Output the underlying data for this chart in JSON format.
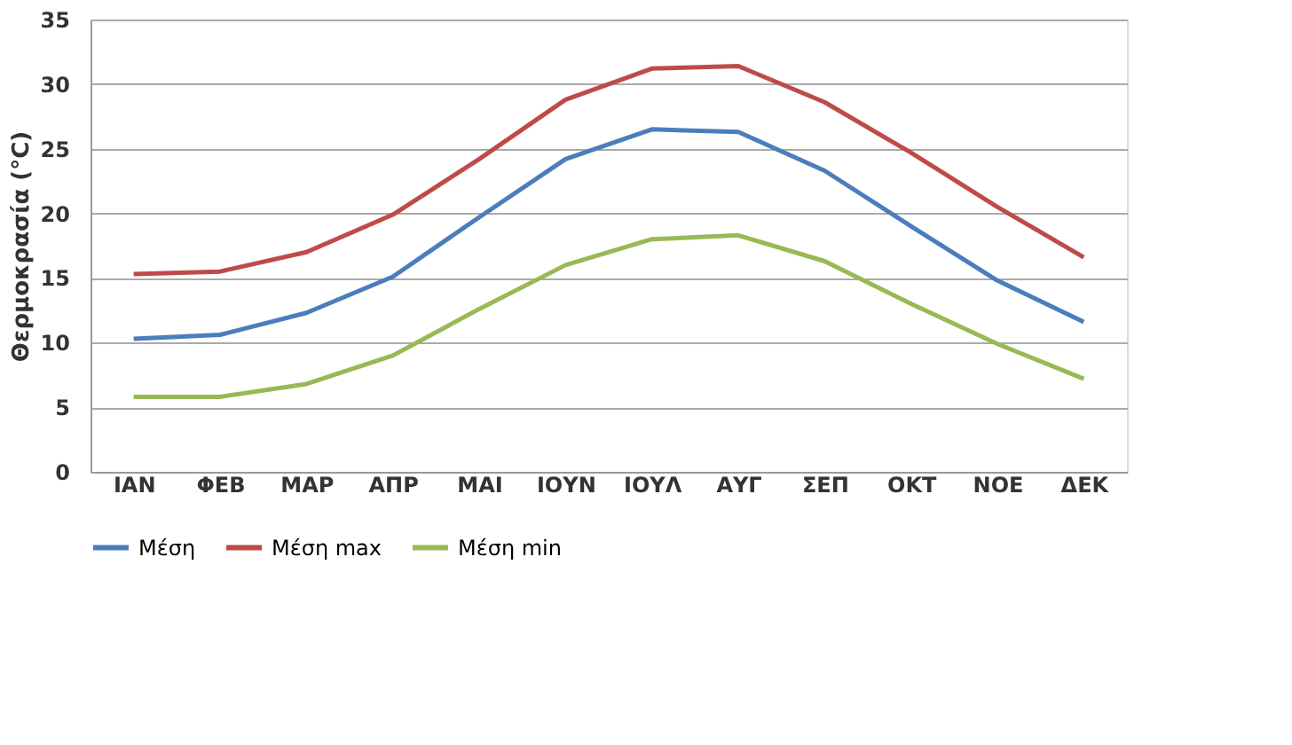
{
  "chart_data": {
    "type": "line",
    "ylabel": "Θερμοκρασία (°C)",
    "categories": [
      "ΙΑΝ",
      "ΦΕΒ",
      "ΜΑΡ",
      "ΑΠΡ",
      "ΜΑΙ",
      "ΙΟΥΝ",
      "ΙΟΥΛ",
      "ΑΥΓ",
      "ΣΕΠ",
      "ΟΚΤ",
      "ΝΟΕ",
      "ΔΕΚ"
    ],
    "series": [
      {
        "name": "Μέση",
        "color": "#4a7ebb",
        "values": [
          10.3,
          10.6,
          12.3,
          15.1,
          19.7,
          24.2,
          26.5,
          26.3,
          23.3,
          19,
          14.8,
          11.6
        ]
      },
      {
        "name": "Μέση max",
        "color": "#be4b48",
        "values": [
          15.3,
          15.5,
          17,
          19.9,
          24.2,
          28.8,
          31.2,
          31.4,
          28.6,
          24.7,
          20.5,
          16.6
        ]
      },
      {
        "name": "Μέση min",
        "color": "#98b954",
        "values": [
          5.8,
          5.8,
          6.8,
          9,
          12.6,
          16,
          18,
          18.3,
          16.3,
          13,
          9.9,
          7.2
        ]
      }
    ],
    "ylim": [
      0,
      35
    ],
    "yticks": [
      0,
      5,
      10,
      15,
      20,
      25,
      30,
      35
    ],
    "grid": "y",
    "legend": "bottom",
    "marker": "none",
    "line_style": "solid"
  }
}
